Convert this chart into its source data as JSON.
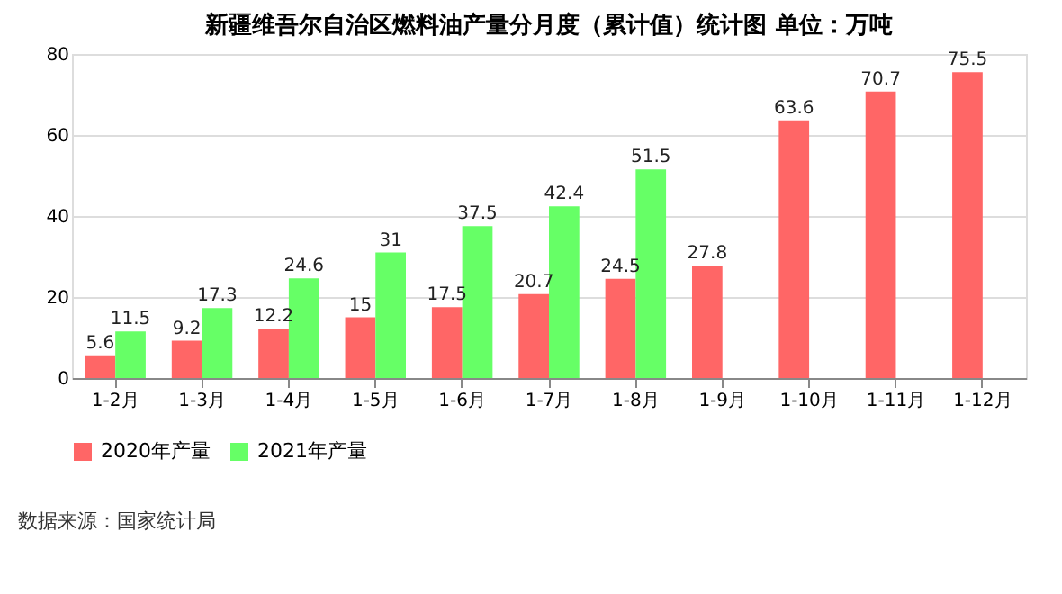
{
  "chart_data": {
    "type": "bar",
    "title": "新疆维吾尔自治区燃料油产量分月度（累计值）统计图 单位：万吨",
    "categories": [
      "1-2月",
      "1-3月",
      "1-4月",
      "1-5月",
      "1-6月",
      "1-7月",
      "1-8月",
      "1-9月",
      "1-10月",
      "1-11月",
      "1-12月"
    ],
    "series": [
      {
        "name": "2020年产量",
        "color": "#ff6666",
        "values": [
          5.6,
          9.2,
          12.2,
          15,
          17.5,
          20.7,
          24.5,
          27.8,
          63.6,
          70.7,
          75.5
        ]
      },
      {
        "name": "2021年产量",
        "color": "#66ff66",
        "values": [
          11.5,
          17.3,
          24.6,
          31,
          37.5,
          42.4,
          51.5,
          null,
          null,
          null,
          null
        ]
      }
    ],
    "ylim": [
      0,
      80
    ],
    "yticks": [
      0,
      20,
      40,
      60,
      80
    ],
    "grid": "y",
    "legend": "bottom",
    "data_labels": true,
    "annotations": [
      "数据来源：国家统计局"
    ]
  }
}
